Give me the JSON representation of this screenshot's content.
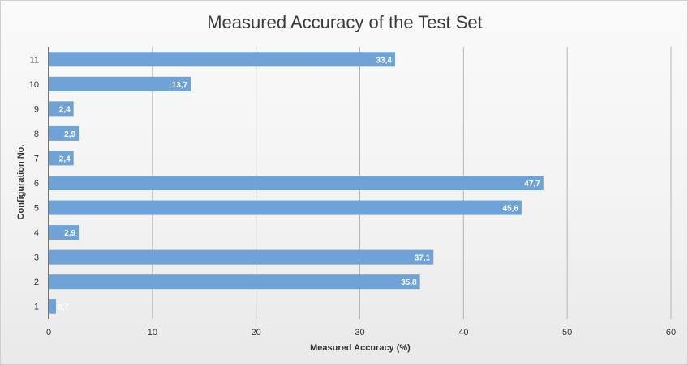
{
  "chart_data": {
    "type": "bar",
    "orientation": "horizontal",
    "title": "Measured Accuracy of the Test Set",
    "xlabel": "Measured Accuracy (%)",
    "ylabel": "Configuration No.",
    "categories": [
      "1",
      "2",
      "3",
      "4",
      "5",
      "6",
      "7",
      "8",
      "9",
      "10",
      "11"
    ],
    "values": [
      0.7,
      35.8,
      37.1,
      2.9,
      45.6,
      47.7,
      2.4,
      2.9,
      2.4,
      13.7,
      33.4
    ],
    "value_labels": [
      "0,7",
      "35,8",
      "37,1",
      "2,9",
      "45,6",
      "47,7",
      "2,4",
      "2,9",
      "2,4",
      "13,7",
      "33,4"
    ],
    "xlim": [
      0,
      60
    ],
    "x_ticks": [
      0,
      10,
      20,
      30,
      40,
      50,
      60
    ],
    "x_tick_labels": [
      "0",
      "10",
      "20",
      "30",
      "40",
      "50",
      "60"
    ],
    "grid": "vertical",
    "legend": "none",
    "colors": {
      "bar": "#6fa3d8",
      "gridline": "#b5b5b5",
      "axis": "#4a4a4a"
    }
  }
}
